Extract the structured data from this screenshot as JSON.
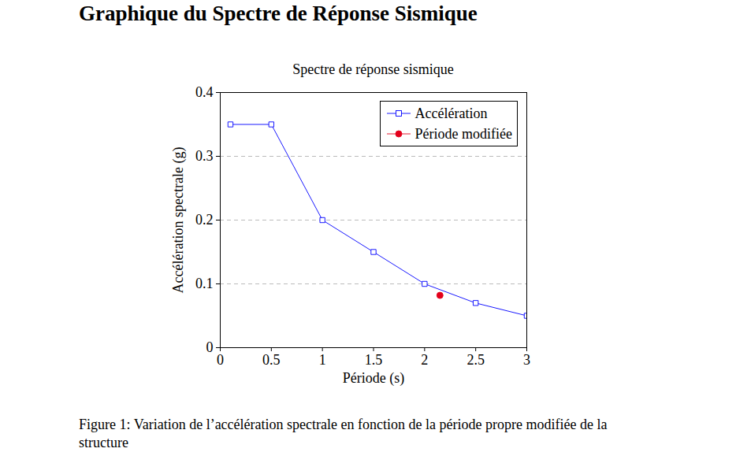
{
  "heading": "Graphique du Spectre de Réponse Sismique",
  "chart_data": {
    "type": "line",
    "title": "Spectre de réponse sismique",
    "x_label": "Période (s)",
    "y_label": "Accélération spectrale (g)",
    "series": [
      {
        "name": "Accélération",
        "color": "#0000ff",
        "marker": "square",
        "x": [
          0.1,
          0.5,
          1,
          1.5,
          2,
          2.5,
          3
        ],
        "values": [
          0.35,
          0.35,
          0.2,
          0.15,
          0.1,
          0.07,
          0.05
        ]
      },
      {
        "name": "Période modifiée",
        "color": "#e3001b",
        "marker": "circle",
        "x": [
          2.15
        ],
        "values": [
          0.082
        ]
      }
    ],
    "xlim": [
      0,
      3
    ],
    "xticks": [
      0,
      0.5,
      1,
      1.5,
      2,
      2.5,
      3
    ],
    "ylim": [
      0,
      0.4
    ],
    "yticks": [
      0,
      0.1,
      0.2,
      0.3,
      0.4
    ],
    "grid": "y",
    "legend": "top-right"
  },
  "caption": "Figure 1: Variation de l’accélération spectrale en fonction de la période propre modifiée de la structure"
}
